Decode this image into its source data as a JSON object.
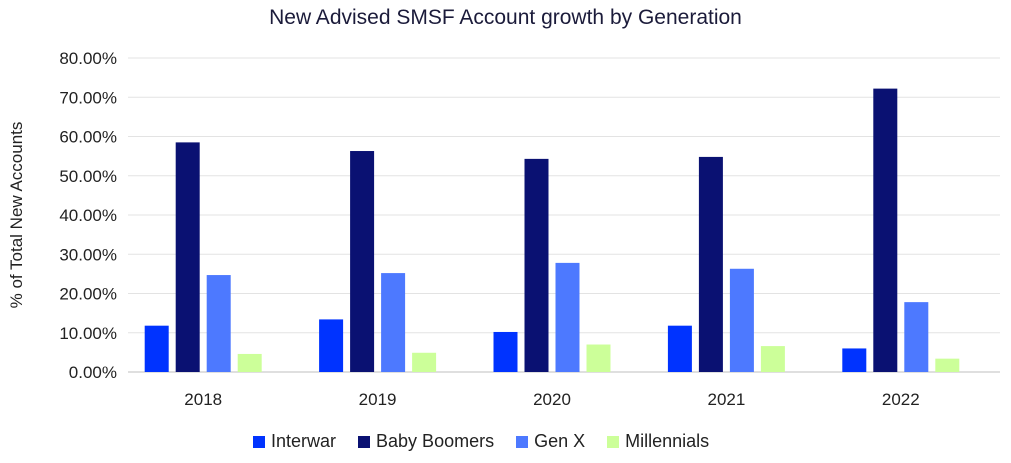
{
  "chart_data": {
    "type": "bar",
    "title": "New Advised SMSF Account growth by Generation",
    "xlabel": "",
    "ylabel": "% of Total New Accounts",
    "categories": [
      "2018",
      "2019",
      "2020",
      "2021",
      "2022"
    ],
    "series": [
      {
        "name": "Interwar",
        "color": "#0033ff",
        "values": [
          11.8,
          13.4,
          10.2,
          11.8,
          6.0
        ]
      },
      {
        "name": "Baby Boomers",
        "color": "#0a1172",
        "values": [
          58.5,
          56.3,
          54.3,
          54.8,
          72.2
        ]
      },
      {
        "name": "Gen X",
        "color": "#4d79ff",
        "values": [
          24.7,
          25.2,
          27.8,
          26.3,
          17.8
        ]
      },
      {
        "name": "Millennials",
        "color": "#ccff99",
        "values": [
          4.6,
          4.9,
          7.0,
          6.6,
          3.4
        ]
      }
    ],
    "ylim": [
      0,
      80
    ],
    "yticks": [
      "0.00%",
      "10.00%",
      "20.00%",
      "30.00%",
      "40.00%",
      "50.00%",
      "60.00%",
      "70.00%",
      "80.00%"
    ],
    "grid": true,
    "legend_position": "bottom"
  }
}
